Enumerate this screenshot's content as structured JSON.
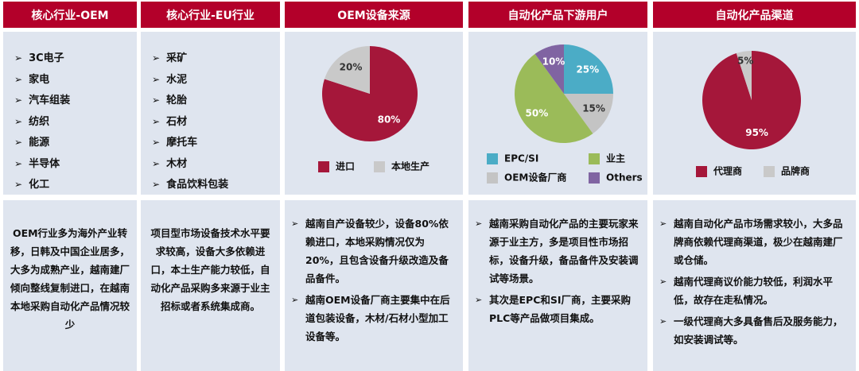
{
  "headers": [
    "核心行业-OEM",
    "核心行业-EU行业",
    "OEM设备来源",
    "自动化产品下游用户",
    "自动化产品渠道"
  ],
  "industries": [
    [
      "3C电子",
      "家电",
      "汽车组装",
      "纺织",
      "能源",
      "半导体",
      "化工"
    ],
    [
      "采矿",
      "水泥",
      "轮胎",
      "石材",
      "摩托车",
      "木材",
      "食品饮料包装"
    ]
  ],
  "notes": [
    [
      "OEM行业多为海外产业转移，日韩及中国企业居多，大多为成熟产业，越南建厂倾向整线复制进口，在越南本地采购自动化产品情况较少"
    ],
    [
      "项目型市场设备技术水平要求较高，设备大多依赖进口，本土生产能力较低，自动化产品采购多来源于业主招标或者系统集成商。"
    ],
    [
      "越南自产设备较少，设备80%依赖进口，本地采购情况仅为20%，且包含设备升级改造及备品备件。",
      "越南OEM设备厂商主要集中在后道包装设备，木材/石材小型加工设备等。"
    ],
    [
      "越南采购自动化产品的主要玩家来源于业主方，多是项目性市场招标，设备升级，备品备件及安装调试等场景。",
      "其次是EPC和SI厂商，主要采购PLC等产品做项目集成。"
    ],
    [
      "越南自动化产品市场需求较小，大多品牌商依赖代理商渠道，极少在越南建厂或仓储。",
      "越南代理商议价能力较低，利润水平低，故存在走私情况。",
      "一级代理商大多具备售后及服务能力，如安装调试等。"
    ]
  ],
  "chart_data": [
    {
      "type": "pie",
      "categories": [
        "进口",
        "本地生产"
      ],
      "values": [
        80,
        20
      ],
      "value_labels": [
        "80%",
        "20%"
      ],
      "colors": [
        "#a5173a",
        "#c9c9c9"
      ]
    },
    {
      "type": "pie",
      "categories": [
        "EPC/SI",
        "OEM设备厂商",
        "业主",
        "Others"
      ],
      "values": [
        25,
        15,
        50,
        10
      ],
      "value_labels": [
        "25%",
        "15%",
        "50%",
        "10%"
      ],
      "colors": [
        "#4bacc6",
        "#c4c4c4",
        "#9bbb59",
        "#8064a2"
      ]
    },
    {
      "type": "pie",
      "categories": [
        "代理商",
        "品牌商"
      ],
      "values": [
        95,
        5
      ],
      "value_labels": [
        "95%",
        "5%"
      ],
      "colors": [
        "#a5173a",
        "#c9c9c9"
      ]
    }
  ]
}
